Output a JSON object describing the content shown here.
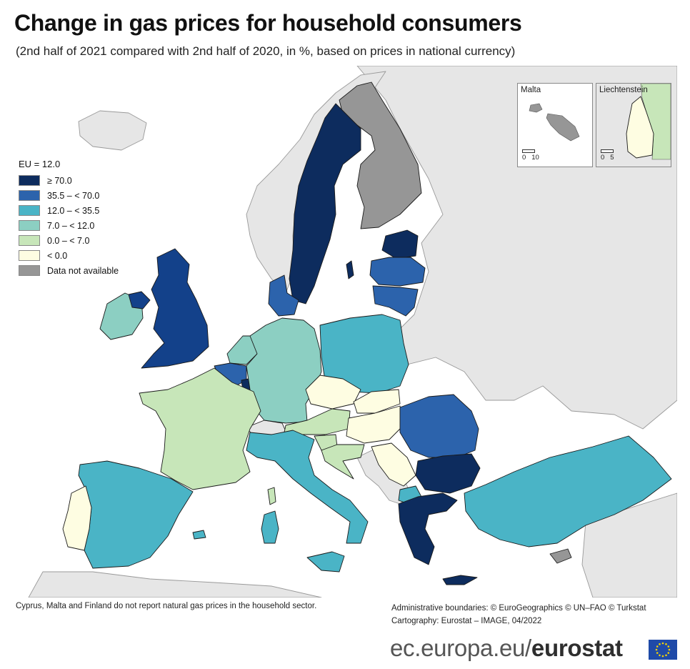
{
  "title": "Change in gas prices for household consumers",
  "subtitle": "(2nd half of 2021 compared with 2nd half of 2020, in %, based on prices in national currency)",
  "legend": {
    "header": "EU = 12.0",
    "classes": [
      {
        "label": "≥ 70.0",
        "color": "#0d2c5e"
      },
      {
        "label": "35.5 – < 70.0",
        "color": "#2c63ac"
      },
      {
        "label": "12.0 – < 35.5",
        "color": "#4ab4c6"
      },
      {
        "label": "7.0 – < 12.0",
        "color": "#8ccfc2"
      },
      {
        "label": "0.0 – < 7.0",
        "color": "#c7e6b9"
      },
      {
        "label": "< 0.0",
        "color": "#fefde2"
      },
      {
        "label": "Data not available",
        "color": "#969696"
      }
    ]
  },
  "colors": {
    "non_eu_land": "#e6e6e6",
    "sea": "#ffffff",
    "border": "#1a1a1a"
  },
  "insets": {
    "malta": {
      "label": "Malta",
      "scale": [
        "0",
        "10"
      ]
    },
    "liechtenstein": {
      "label": "Liechtenstein",
      "scale": [
        "0",
        "5"
      ]
    }
  },
  "footnote": "Cyprus, Malta and Finland do not report natural gas prices in the household sector.",
  "credits": {
    "line1": "Administrative boundaries: © EuroGeographics © UN–FAO © Turkstat",
    "line2": "Cartography: Eurostat – IMAGE, 04/2022"
  },
  "brand": {
    "prefix": "ec.europa.eu/",
    "name": "eurostat"
  }
}
